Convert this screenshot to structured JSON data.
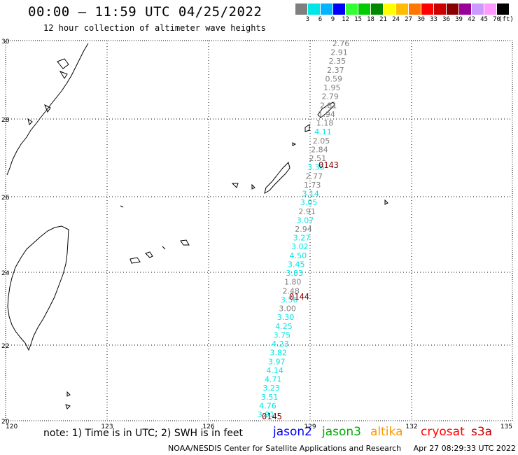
{
  "title": "00:00 — 11:59 UTC 04/25/2022",
  "subtitle": "12 hour collection of altimeter wave heights",
  "legend": {
    "unit": "(ft)",
    "colors": [
      "#7f7f7f",
      "#00e5e5",
      "#00b4ff",
      "#0000ff",
      "#33ff33",
      "#00cc00",
      "#008800",
      "#ffff00",
      "#ffbb00",
      "#ff7700",
      "#ff0000",
      "#cc0000",
      "#880000",
      "#990099",
      "#cc99ff",
      "#ff99ff",
      "#000000"
    ],
    "ticks": [
      "3",
      "6",
      "9",
      "12",
      "15",
      "18",
      "21",
      "24",
      "27",
      "30",
      "33",
      "36",
      "39",
      "42",
      "45",
      "70"
    ]
  },
  "axes": {
    "lon_labels": [
      "120",
      "123",
      "126",
      "129",
      "132",
      "135"
    ],
    "lat_labels": [
      "30",
      "28",
      "26",
      "24",
      "22",
      "20"
    ]
  },
  "wave_heights": [
    {
      "v": "2.76",
      "c": "gray"
    },
    {
      "v": "2.91",
      "c": "gray"
    },
    {
      "v": "2.35",
      "c": "gray"
    },
    {
      "v": "2.37",
      "c": "gray"
    },
    {
      "v": "0.59",
      "c": "gray"
    },
    {
      "v": "1.95",
      "c": "gray"
    },
    {
      "v": "2.79",
      "c": "gray"
    },
    {
      "v": "2.81",
      "c": "gray"
    },
    {
      "v": "1.94",
      "c": "gray"
    },
    {
      "v": "1.18",
      "c": "gray"
    },
    {
      "v": "4.11",
      "c": "cyan"
    },
    {
      "v": "2.05",
      "c": "gray"
    },
    {
      "v": "2.84",
      "c": "gray"
    },
    {
      "v": "2.51",
      "c": "gray"
    },
    {
      "v": "3.36",
      "c": "cyan"
    },
    {
      "v": "2.77",
      "c": "gray"
    },
    {
      "v": "1.73",
      "c": "gray"
    },
    {
      "v": "3.14",
      "c": "cyan"
    },
    {
      "v": "3.05",
      "c": "cyan"
    },
    {
      "v": "2.91",
      "c": "gray"
    },
    {
      "v": "3.07",
      "c": "cyan"
    },
    {
      "v": "2.94",
      "c": "gray"
    },
    {
      "v": "3.27",
      "c": "cyan"
    },
    {
      "v": "3.02",
      "c": "cyan"
    },
    {
      "v": "4.50",
      "c": "cyan"
    },
    {
      "v": "3.45",
      "c": "cyan"
    },
    {
      "v": "3.83",
      "c": "cyan"
    },
    {
      "v": "1.80",
      "c": "gray"
    },
    {
      "v": "2.48",
      "c": "gray"
    },
    {
      "v": "3.56",
      "c": "cyan"
    },
    {
      "v": "3.00",
      "c": "gray"
    },
    {
      "v": "3.30",
      "c": "cyan"
    },
    {
      "v": "4.25",
      "c": "cyan"
    },
    {
      "v": "3.75",
      "c": "cyan"
    },
    {
      "v": "4.23",
      "c": "cyan"
    },
    {
      "v": "3.82",
      "c": "cyan"
    },
    {
      "v": "3.97",
      "c": "cyan"
    },
    {
      "v": "4.14",
      "c": "cyan"
    },
    {
      "v": "4.71",
      "c": "cyan"
    },
    {
      "v": "3.23",
      "c": "cyan"
    },
    {
      "v": "3.51",
      "c": "cyan"
    },
    {
      "v": "4.76",
      "c": "cyan"
    },
    {
      "v": "3.91",
      "c": "cyan"
    }
  ],
  "value_colors": {
    "gray": "#7f7f7f",
    "cyan": "#00e5e5"
  },
  "pass_times": [
    "0143",
    "0144",
    "0145"
  ],
  "note": "note: 1) Time is in UTC; 2) SWH is in feet",
  "satellites": [
    {
      "name": "jason2",
      "color": "#0000ff"
    },
    {
      "name": "jason3",
      "color": "#00aa00"
    },
    {
      "name": "altika",
      "color": "#ff9900"
    },
    {
      "name": "cryosat",
      "color": "#ff0000"
    },
    {
      "name": "s3a",
      "color": "#cc0000"
    }
  ],
  "credit": "NOAA/NESDIS Center for Satellite Applications and Research",
  "timestamp": "Apr 27 08:29:33 UTC 2022"
}
